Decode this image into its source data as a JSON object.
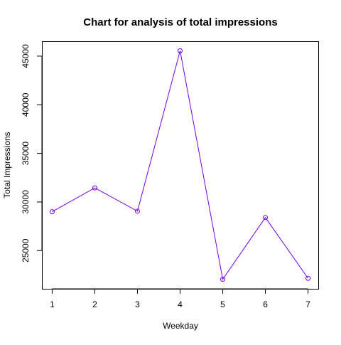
{
  "chart_data": {
    "type": "line",
    "title": "Chart for analysis of total impressions",
    "xlabel": "Weekday",
    "ylabel": "Total Impressions",
    "x": [
      1,
      2,
      3,
      4,
      5,
      6,
      7
    ],
    "series": [
      {
        "values": [
          29000,
          31450,
          29050,
          45550,
          22050,
          28400,
          22150
        ],
        "color": "#7700dd",
        "marker": "circle"
      }
    ],
    "x_ticks": [
      "1",
      "2",
      "3",
      "4",
      "5",
      "6",
      "7"
    ],
    "y_ticks": [
      25000,
      30000,
      35000,
      40000,
      45000
    ],
    "y_tick_labels": [
      "25000",
      "30000",
      "35000",
      "40000",
      "45000"
    ],
    "xlim": [
      0.76,
      7.24
    ],
    "ylim": [
      21070,
      46530
    ],
    "grid": false,
    "legend": "none"
  }
}
